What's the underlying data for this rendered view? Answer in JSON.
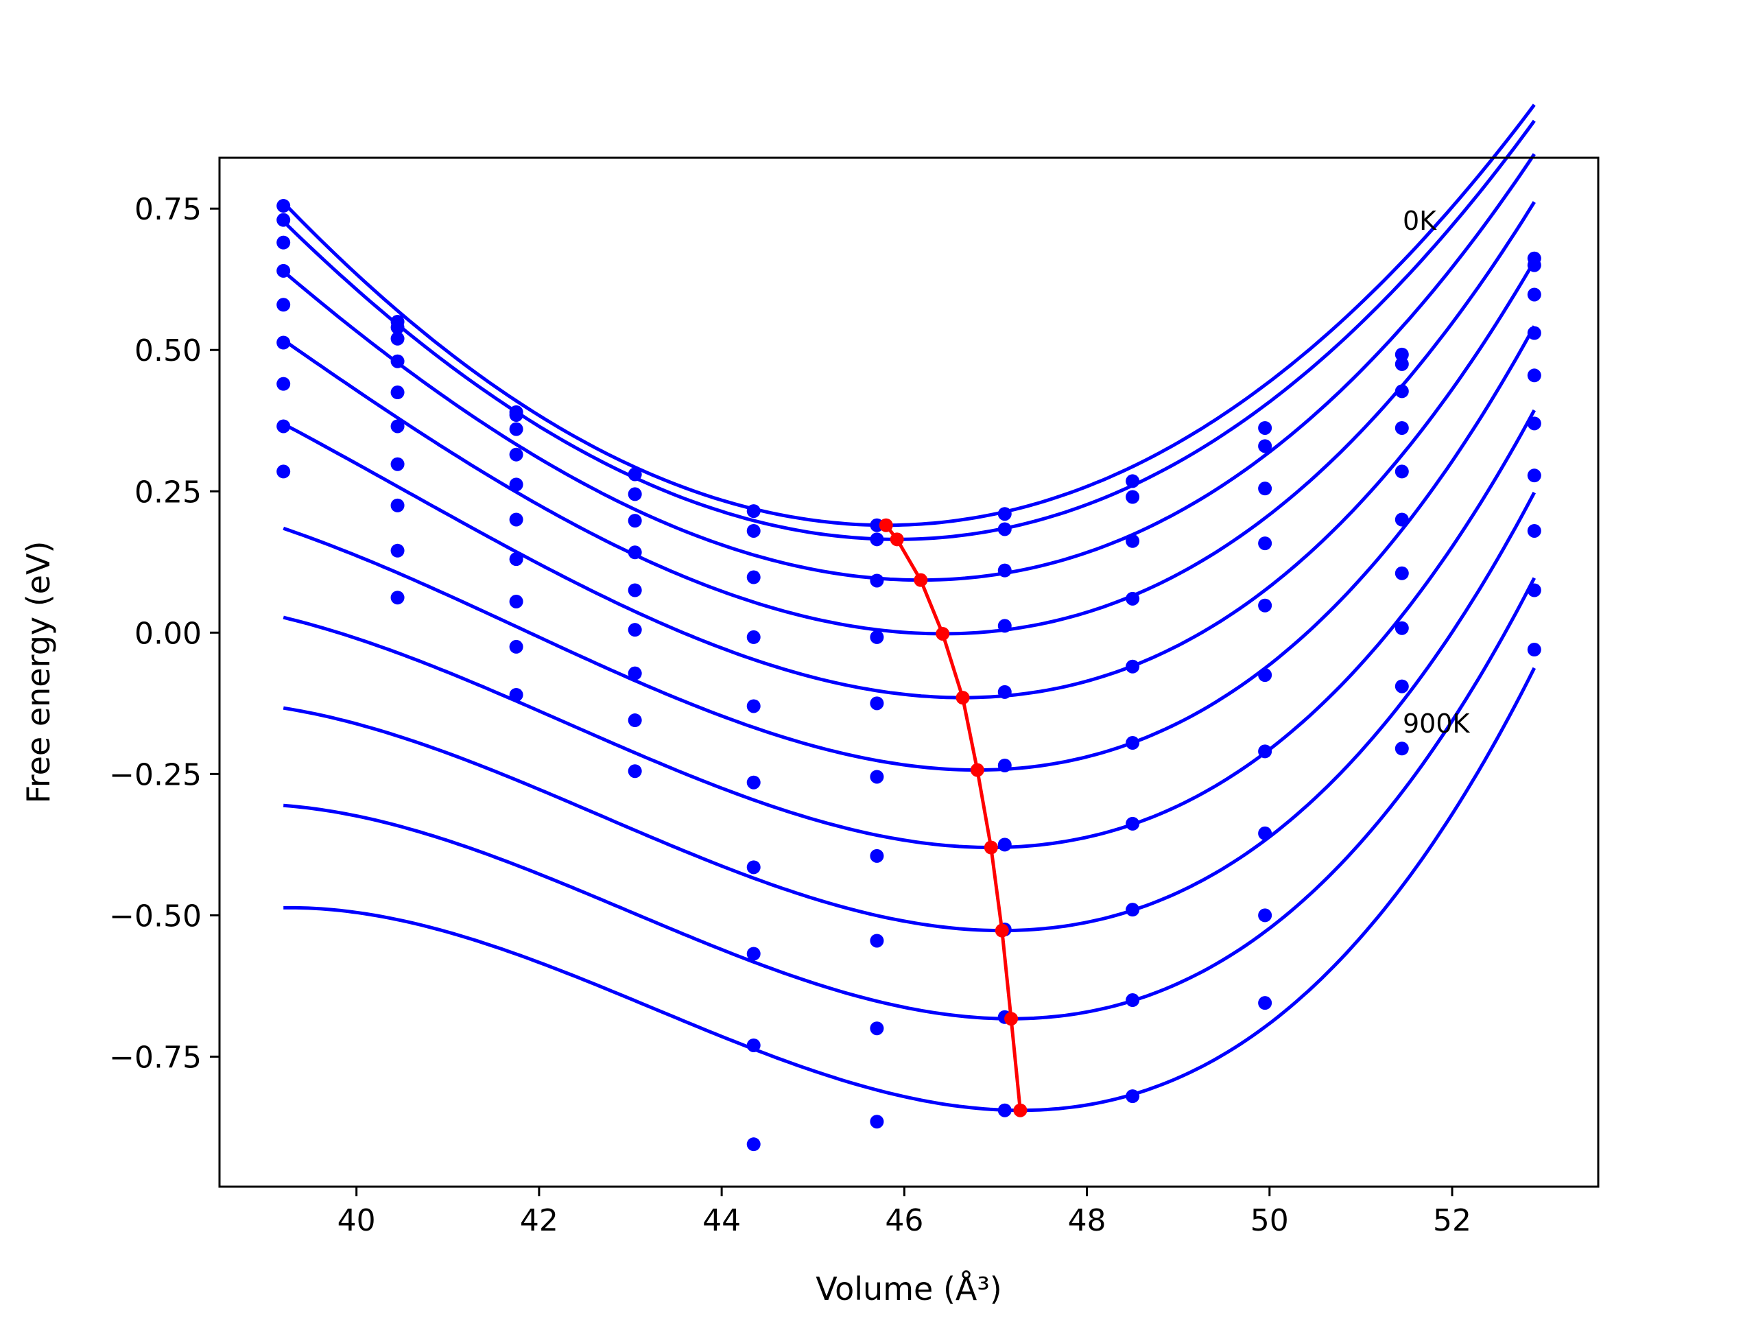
{
  "chart_data": {
    "type": "scatter",
    "title": "",
    "xlabel": "Volume (Å³)",
    "ylabel": "Free energy (eV)",
    "xlim": [
      38.5,
      53.6
    ],
    "ylim": [
      -0.98,
      0.84
    ],
    "grid": false,
    "legend": "none",
    "x_ticks": [
      40,
      42,
      44,
      46,
      48,
      50,
      52
    ],
    "x_tick_labels": [
      "40",
      "42",
      "44",
      "46",
      "48",
      "50",
      "52"
    ],
    "y_ticks": [
      0.75,
      0.5,
      0.25,
      0.0,
      -0.25,
      -0.5,
      -0.75
    ],
    "y_tick_labels": [
      "0.75",
      "0.50",
      "0.25",
      "0.00",
      "−0.25",
      "−0.50",
      "−0.75"
    ],
    "annotations": [
      {
        "text": "0K",
        "x": 51.4,
        "y": 0.72
      },
      {
        "text": "900K",
        "x": 51.4,
        "y": -0.16
      }
    ],
    "colors": {
      "data_points": "#0000ff",
      "fits": "#0000ff",
      "minimum_path": "#ff0000"
    },
    "x": [
      39.2,
      40.45,
      41.75,
      43.05,
      44.35,
      45.7,
      47.1,
      48.5,
      49.95,
      51.45,
      52.9
    ],
    "series": [
      {
        "values": [
          0.755,
          0.55,
          0.39,
          0.28,
          0.215,
          0.19,
          0.21,
          0.268,
          0.362,
          0.492,
          0.662
        ]
      },
      {
        "values": [
          0.73,
          0.54,
          0.385,
          0.245,
          0.18,
          0.165,
          0.183,
          0.24,
          0.33,
          0.475,
          0.65
        ]
      },
      {
        "values": [
          0.69,
          0.52,
          0.36,
          0.198,
          0.098,
          0.092,
          0.11,
          0.162,
          0.255,
          0.427,
          0.598
        ]
      },
      {
        "values": [
          0.64,
          0.48,
          0.315,
          0.142,
          -0.008,
          -0.008,
          0.012,
          0.06,
          0.158,
          0.362,
          0.53
        ]
      },
      {
        "values": [
          0.58,
          0.425,
          0.262,
          0.075,
          -0.13,
          -0.125,
          -0.105,
          -0.06,
          0.048,
          0.285,
          0.455
        ]
      },
      {
        "values": [
          0.513,
          0.365,
          0.2,
          0.005,
          -0.265,
          -0.255,
          -0.235,
          -0.195,
          -0.075,
          0.2,
          0.37
        ]
      },
      {
        "values": [
          0.44,
          0.298,
          0.13,
          -0.072,
          -0.415,
          -0.395,
          -0.375,
          -0.338,
          -0.21,
          0.105,
          0.278
        ]
      },
      {
        "values": [
          0.365,
          0.225,
          0.055,
          -0.155,
          -0.568,
          -0.545,
          -0.525,
          -0.49,
          -0.355,
          0.008,
          0.18
        ]
      },
      {
        "values": [
          0.285,
          0.145,
          -0.025,
          -0.245,
          -0.73,
          -0.7,
          -0.68,
          -0.65,
          -0.5,
          -0.095,
          0.075
        ]
      },
      {
        "values": [
          null,
          0.062,
          -0.11,
          null,
          -0.905,
          -0.865,
          -0.845,
          -0.82,
          -0.655,
          -0.205,
          -0.03
        ]
      }
    ],
    "fit_curves": [
      {
        "vmin": 45.8,
        "emin": 0.19,
        "a": 0.0139,
        "b": 0.00012
      },
      {
        "vmin": 45.92,
        "emin": 0.165,
        "a": 0.0138,
        "b": 0.0002
      },
      {
        "vmin": 46.18,
        "emin": 0.093,
        "a": 0.014,
        "b": 0.0004
      },
      {
        "vmin": 46.42,
        "emin": -0.002,
        "a": 0.0143,
        "b": 0.0006
      },
      {
        "vmin": 46.64,
        "emin": -0.115,
        "a": 0.0147,
        "b": 0.0008
      },
      {
        "vmin": 46.8,
        "emin": -0.243,
        "a": 0.015,
        "b": 0.001
      },
      {
        "vmin": 46.95,
        "emin": -0.38,
        "a": 0.0153,
        "b": 0.0011
      },
      {
        "vmin": 47.07,
        "emin": -0.527,
        "a": 0.0158,
        "b": 0.0012
      },
      {
        "vmin": 47.17,
        "emin": -0.683,
        "a": 0.0163,
        "b": 0.0013
      },
      {
        "vmin": 47.27,
        "emin": -0.845,
        "a": 0.0168,
        "b": 0.0014
      }
    ],
    "equilibrium_path": {
      "x": [
        45.8,
        45.92,
        46.18,
        46.42,
        46.64,
        46.8,
        46.95,
        47.07,
        47.17,
        47.27
      ],
      "y": [
        0.19,
        0.165,
        0.093,
        -0.002,
        -0.115,
        -0.243,
        -0.38,
        -0.527,
        -0.683,
        -0.845
      ]
    }
  }
}
